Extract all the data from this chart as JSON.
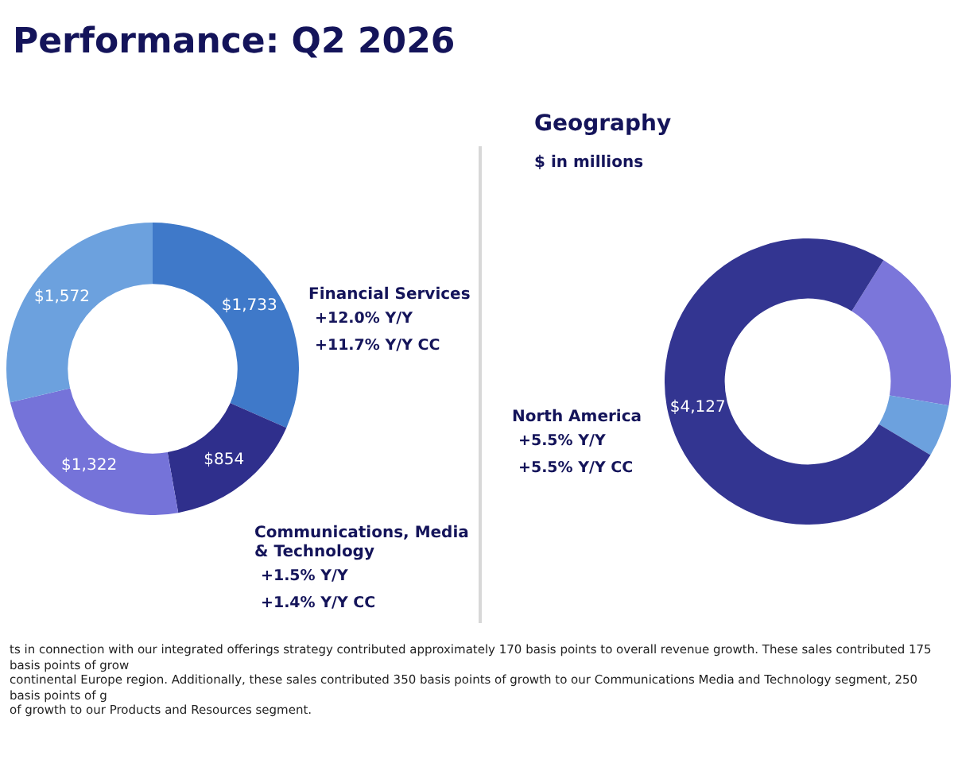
{
  "chart_data": [
    {
      "type": "donut",
      "title": "Performance: Q2 2026",
      "categories": [
        "Financial Services",
        "Communications, Media & Technology",
        null,
        null
      ],
      "values": [
        1733,
        854,
        1322,
        1572
      ],
      "value_labels": [
        "$1,733",
        "$854",
        "$1,322",
        "$1,572"
      ],
      "colors": [
        "#3f79c9",
        "#2f2f8c",
        "#7573d9",
        "#6ca1de"
      ],
      "legend": false,
      "annotations": [
        "+12.0% Y/Y",
        "+11.7%  Y/Y CC",
        "+1.5%  Y/Y",
        "+1.4%  Y/Y CC",
        "ts in connection with our integrated offerings strategy contributed approximately 170 basis points to overall revenue growth. These sales contributed 175 basis points of grow",
        "continental Europe region. Additionally, these sales contributed 350 basis points of growth to our Communications Media and Technology segment, 250 basis points of g",
        "of growth to our Products and Resources segment."
      ]
    },
    {
      "type": "donut",
      "title": "Geography",
      "subtitle": "$ in millions",
      "categories": [
        null,
        null,
        "North America"
      ],
      "values": [
        1030,
        324,
        4127
      ],
      "value_labels": [
        null,
        null,
        "$4,127"
      ],
      "colors": [
        "#7b76da",
        "#6ca1de",
        "#333591"
      ],
      "legend": false,
      "annotations": [
        "+5.5% Y/Y",
        "+5.5% Y/Y CC"
      ]
    }
  ]
}
